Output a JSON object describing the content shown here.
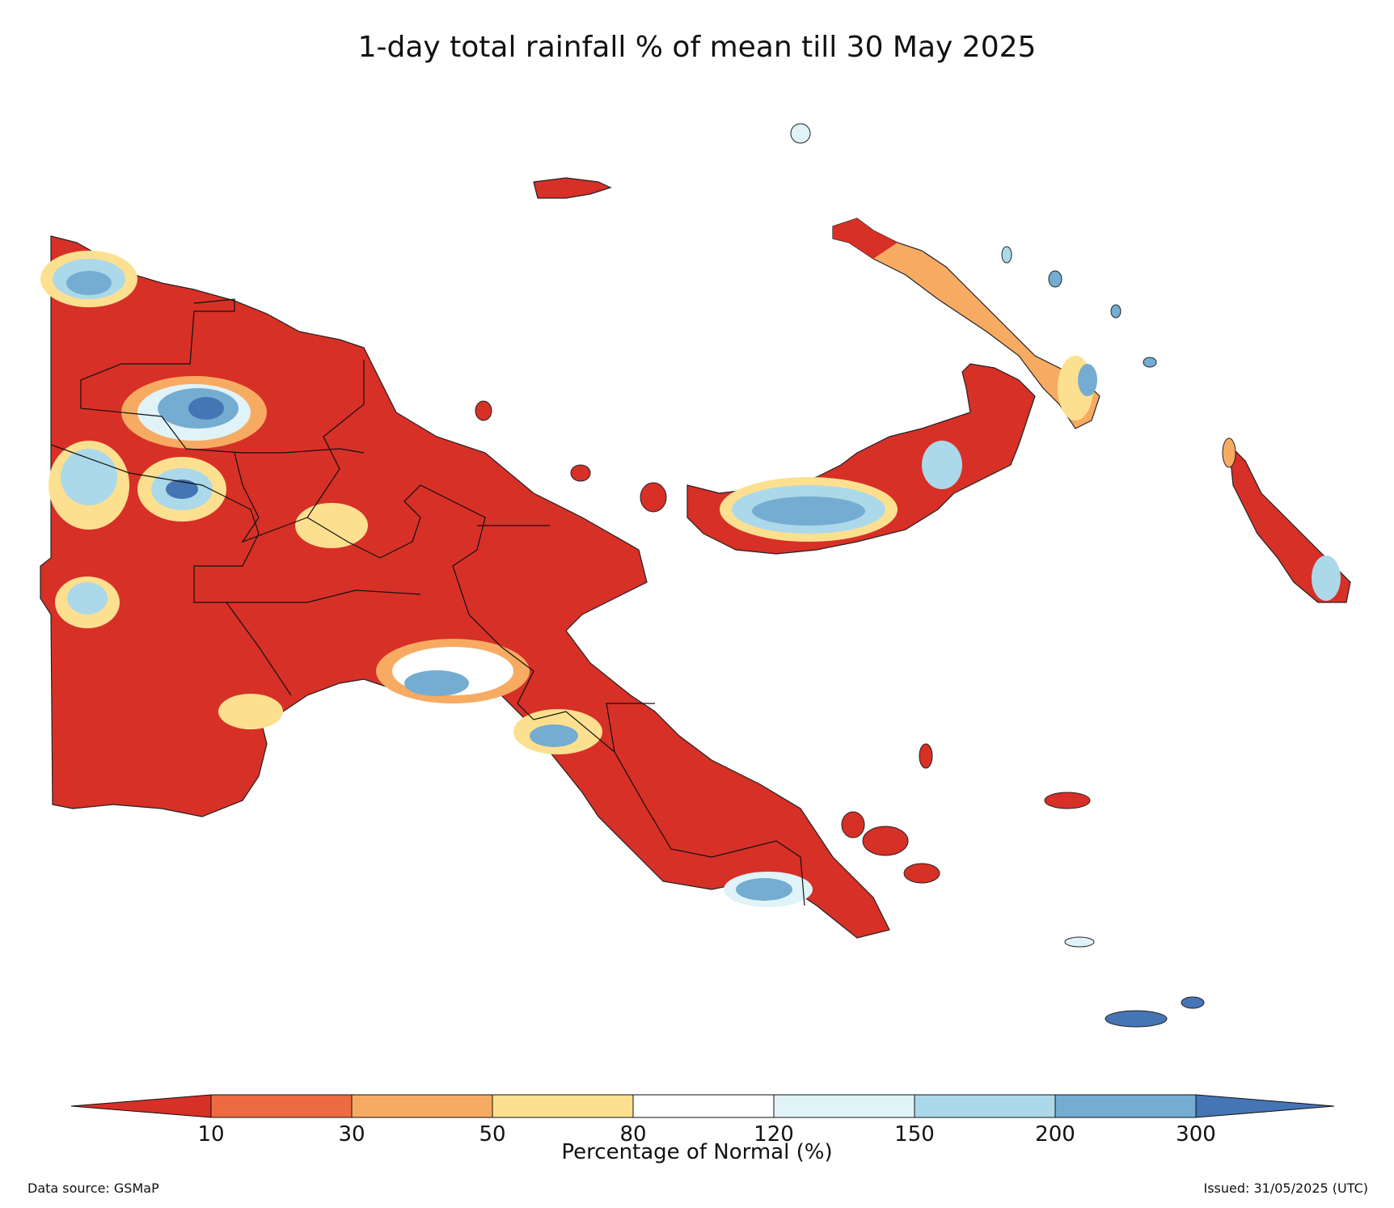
{
  "title": "1-day total rainfall % of mean till 30 May 2025",
  "legend": {
    "title": "Percentage of Normal (%)",
    "ticks": [
      "10",
      "30",
      "50",
      "80",
      "120",
      "150",
      "200",
      "300"
    ],
    "bins": [
      {
        "range": "<10",
        "color": "#d73027"
      },
      {
        "range": "10-30",
        "color": "#ee6a42"
      },
      {
        "range": "30-50",
        "color": "#f7ab62"
      },
      {
        "range": "50-80",
        "color": "#fde08f"
      },
      {
        "range": "80-120",
        "color": "#ffffff"
      },
      {
        "range": "120-150",
        "color": "#e0f3f8"
      },
      {
        "range": "150-200",
        "color": "#abd9e9"
      },
      {
        "range": "200-300",
        "color": "#74add1"
      },
      {
        "range": ">300",
        "color": "#4575b4"
      }
    ]
  },
  "footer": {
    "source": "Data source: GSMaP",
    "issued": "Issued: 31/05/2025 (UTC)"
  }
}
